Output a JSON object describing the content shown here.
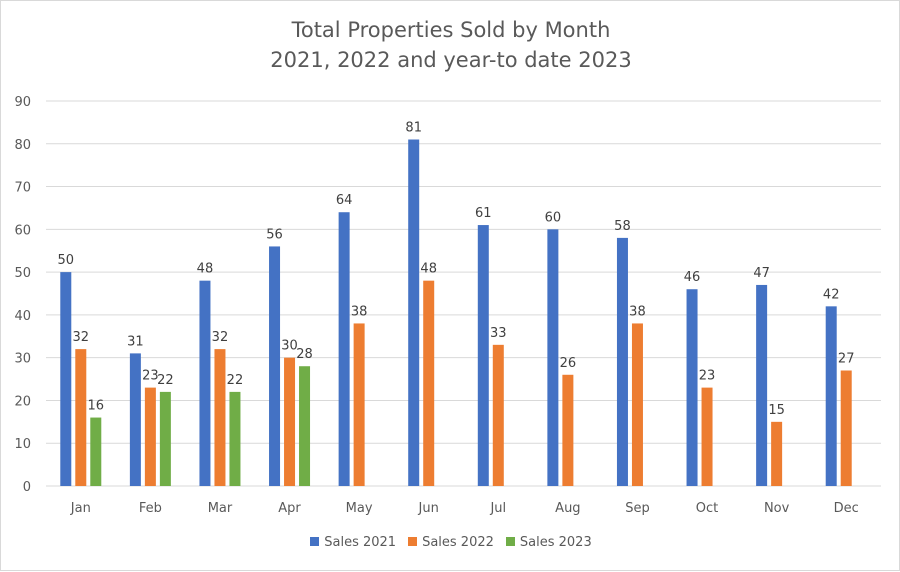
{
  "chart_data": {
    "type": "bar",
    "title": "Total Properties Sold by Month",
    "subtitle": "2021, 2022 and year-to date 2023",
    "categories": [
      "Jan",
      "Feb",
      "Mar",
      "Apr",
      "May",
      "Jun",
      "Jul",
      "Aug",
      "Sep",
      "Oct",
      "Nov",
      "Dec"
    ],
    "series": [
      {
        "name": "Sales 2021",
        "color": "#4472c4",
        "values": [
          50,
          31,
          48,
          56,
          64,
          81,
          61,
          60,
          58,
          46,
          47,
          42
        ]
      },
      {
        "name": "Sales 2022",
        "color": "#ed7d31",
        "values": [
          32,
          23,
          32,
          30,
          38,
          48,
          33,
          26,
          38,
          23,
          15,
          27
        ]
      },
      {
        "name": "Sales 2023",
        "color": "#70ad47",
        "values": [
          16,
          22,
          22,
          28,
          null,
          null,
          null,
          null,
          null,
          null,
          null,
          null
        ]
      }
    ],
    "ylim": [
      0,
      90
    ],
    "yticks": [
      0,
      10,
      20,
      30,
      40,
      50,
      60,
      70,
      80,
      90
    ],
    "xlabel": "",
    "ylabel": "",
    "grid": true,
    "legend_position": "bottom",
    "data_labels": true
  }
}
